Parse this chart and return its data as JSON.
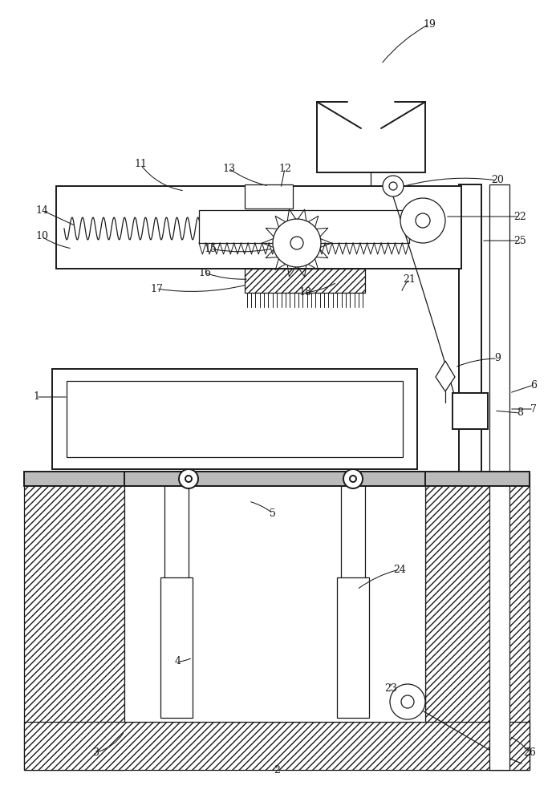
{
  "bg": "#ffffff",
  "lc": "#1a1a1a",
  "fig_w": 6.93,
  "fig_h": 10.0,
  "dpi": 100
}
